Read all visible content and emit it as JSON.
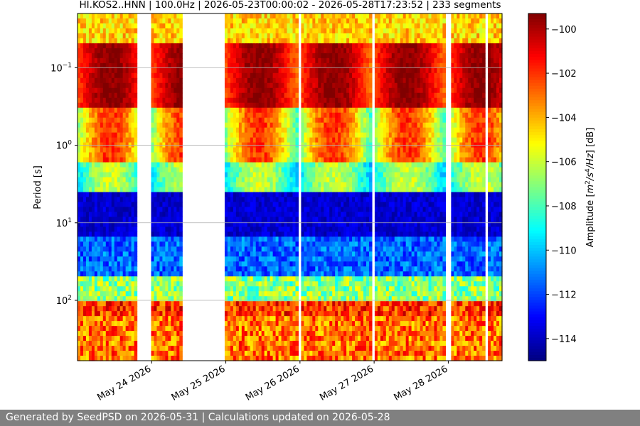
{
  "chart_data": {
    "type": "heatmap",
    "title": "HI.KOS2..HNN | 100.0Hz | 2026-05-23T00:00:02 - 2026-05-28T17:23:52 | 233 segments",
    "ylabel": "Period [s]",
    "y_scale": "log",
    "y_inverted": true,
    "y_range": [
      0.02,
      600
    ],
    "y_ticks": [
      {
        "value": 0.1,
        "base": "10",
        "exp": "−1"
      },
      {
        "value": 1,
        "base": "10",
        "exp": "0"
      },
      {
        "value": 10,
        "base": "10",
        "exp": "1"
      },
      {
        "value": 100,
        "base": "10",
        "exp": "2"
      }
    ],
    "x_range": [
      "2026-05-23T00:00:02",
      "2026-05-28T17:23:52"
    ],
    "x_ticks": [
      "May 24 2026",
      "May 25 2026",
      "May 26 2026",
      "May 27 2026",
      "May 28 2026"
    ],
    "data_gaps_days": [
      [
        0.8,
        1.0
      ],
      [
        1.4,
        2.0
      ],
      [
        2.98,
        3.02
      ],
      [
        3.98,
        4.02
      ],
      [
        4.98,
        5.02
      ],
      [
        5.5,
        5.54
      ]
    ],
    "colorbar": {
      "label": "Amplitude [m²/s⁴/Hz] [dB]",
      "label_main": "Amplitude [",
      "label_unit_a": "m",
      "label_sup_a": "2",
      "label_unit_b": "/s",
      "label_sup_b": "4",
      "label_unit_c": "/Hz",
      "label_tail": "] [dB]",
      "range": [
        -115,
        -99.3
      ],
      "ticks": [
        "−100",
        "−102",
        "−104",
        "−106",
        "−108",
        "−110",
        "−112",
        "−114"
      ],
      "colormap": "jet"
    },
    "grid": "horizontal"
  },
  "footer": "Generated by SeedPSD on 2026-05-31 | Calculations updated on 2026-05-28"
}
